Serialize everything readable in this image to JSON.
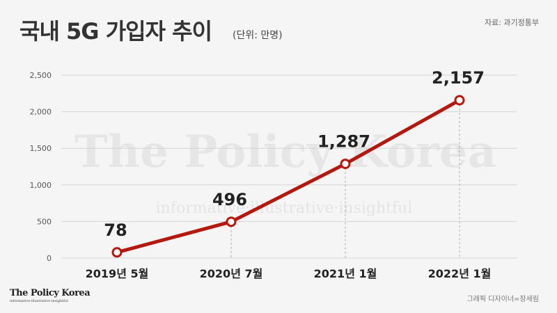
{
  "header": {
    "title": "국내 5G 가입자 추이",
    "unit": "(단위: 만명)",
    "source": "자료: 과기정통부"
  },
  "footer": {
    "logo_name": "The Policy Korea",
    "logo_tagline": "informative·illustrative·insightful",
    "designer": "그래픽 디자이너=장세림"
  },
  "watermark": {
    "main": "The Policy Korea",
    "sub": "informative·illustrative·insightful"
  },
  "colors": {
    "line": "#b5180f",
    "grid": "#d4d4d4",
    "marker_fill": "#ffffff",
    "label": "#222222"
  },
  "chart_data": {
    "type": "line",
    "categories": [
      "2019년 5월",
      "2020년 7월",
      "2021년 1월",
      "2022년 1월"
    ],
    "values": [
      78,
      496,
      1287,
      2157
    ],
    "value_labels": [
      "78",
      "496",
      "1,287",
      "2,157"
    ],
    "yticks": [
      "0",
      "500",
      "1,000",
      "1,500",
      "2,000",
      "2,500"
    ],
    "ytick_values": [
      0,
      500,
      1000,
      1500,
      2000,
      2500
    ],
    "ylim": [
      0,
      2500
    ],
    "grid": true,
    "xlabel": "",
    "ylabel": ""
  }
}
